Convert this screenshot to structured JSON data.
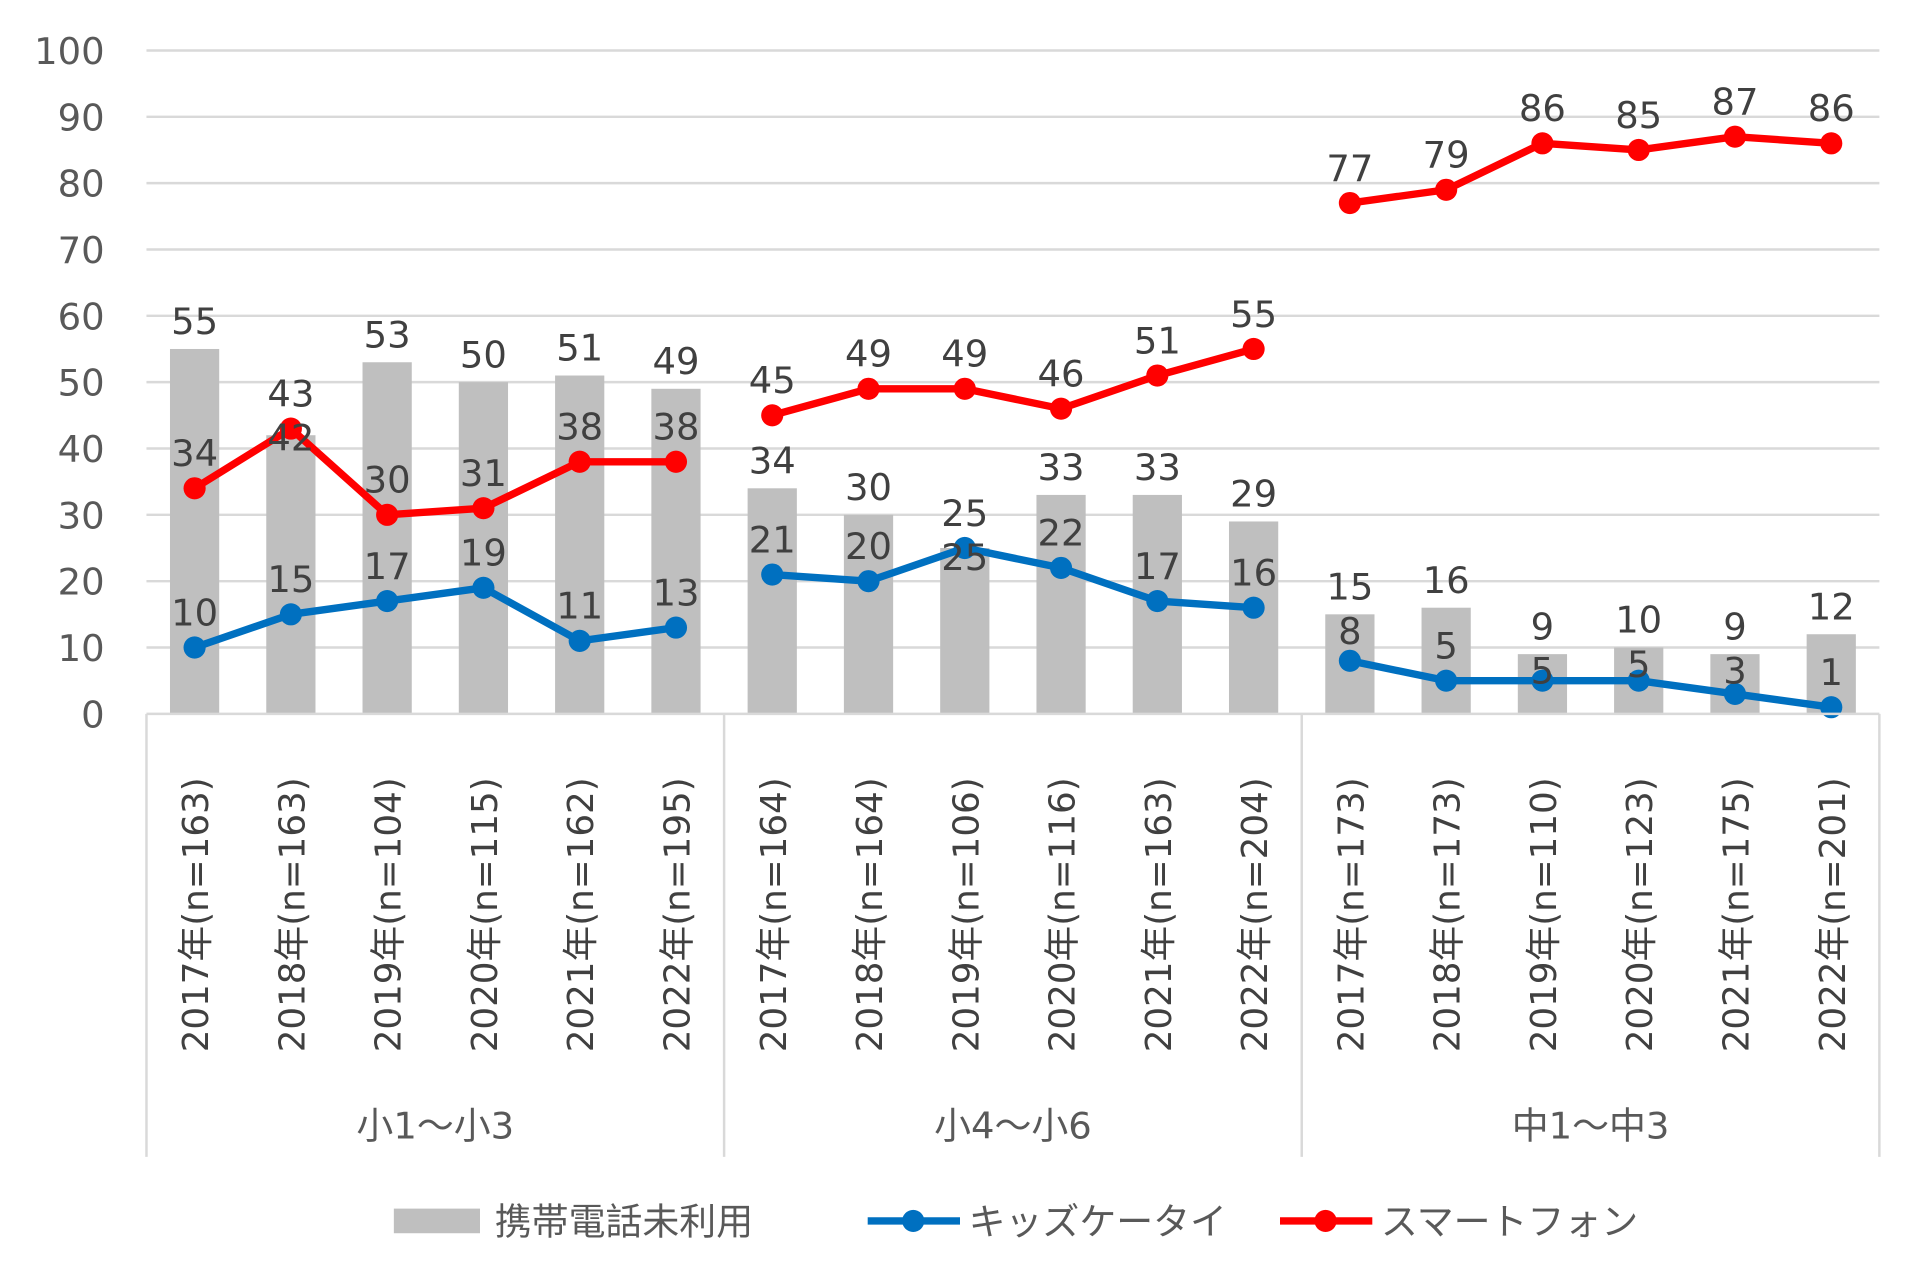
{
  "chart_data": {
    "type": "bar+line",
    "y_axis": {
      "min": 0,
      "max": 100,
      "step": 10,
      "ticks": [
        "0",
        "10",
        "20",
        "30",
        "40",
        "50",
        "60",
        "70",
        "80",
        "90",
        "100"
      ]
    },
    "grid": true,
    "legend_position": "bottom",
    "groups": [
      {
        "label": "小1～小3",
        "categories": [
          "2017年(n=163)",
          "2018年(n=163)",
          "2019年(n=104)",
          "2020年(n=115)",
          "2021年(n=162)",
          "2022年(n=195)"
        ]
      },
      {
        "label": "小4～小6",
        "categories": [
          "2017年(n=164)",
          "2018年(n=164)",
          "2019年(n=106)",
          "2020年(n=116)",
          "2021年(n=163)",
          "2022年(n=204)"
        ]
      },
      {
        "label": "中1～中3",
        "categories": [
          "2017年(n=173)",
          "2018年(n=173)",
          "2019年(n=110)",
          "2020年(n=123)",
          "2021年(n=175)",
          "2022年(n=201)"
        ]
      }
    ],
    "series": [
      {
        "name": "携帯電話未利用",
        "type": "bar",
        "color": "#bfbfbf",
        "values": [
          [
            55,
            42,
            53,
            50,
            51,
            49
          ],
          [
            34,
            30,
            25,
            33,
            33,
            29
          ],
          [
            15,
            16,
            9,
            10,
            9,
            12
          ]
        ]
      },
      {
        "name": "キッズケータイ",
        "type": "line",
        "color": "#0070c0",
        "values": [
          [
            10,
            15,
            17,
            19,
            11,
            13
          ],
          [
            21,
            20,
            25,
            22,
            17,
            16
          ],
          [
            8,
            5,
            5,
            5,
            3,
            1
          ]
        ]
      },
      {
        "name": "スマートフォン",
        "type": "line",
        "color": "#ff0000",
        "values": [
          [
            34,
            43,
            30,
            31,
            38,
            38
          ],
          [
            45,
            49,
            49,
            46,
            51,
            55
          ],
          [
            77,
            79,
            86,
            85,
            87,
            86
          ]
        ]
      }
    ]
  }
}
